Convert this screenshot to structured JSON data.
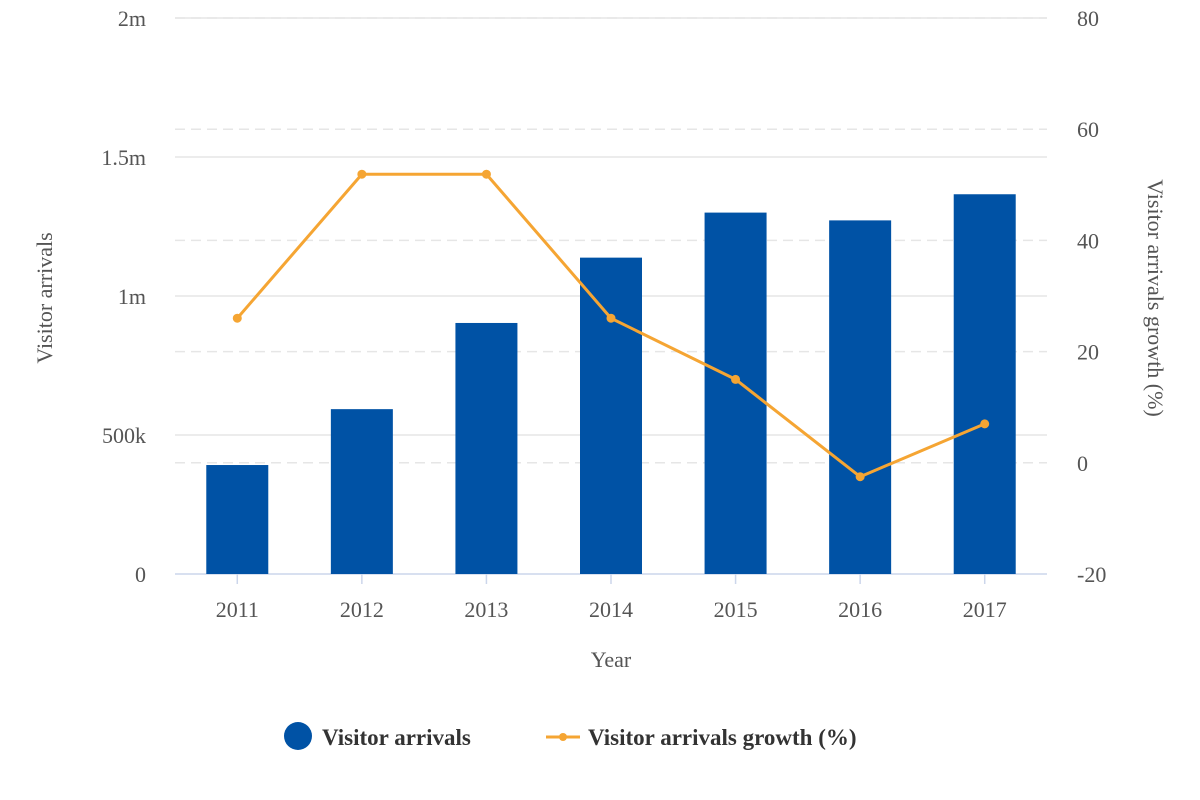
{
  "chart_data": {
    "type": "bar",
    "categories": [
      "2011",
      "2012",
      "2013",
      "2014",
      "2015",
      "2016",
      "2017"
    ],
    "series": [
      {
        "name": "Visitor arrivals",
        "type": "bar",
        "axis": "left",
        "color": "#0052A5",
        "values": [
          392000,
          593000,
          903000,
          1138000,
          1300000,
          1272000,
          1366000
        ]
      },
      {
        "name": "Visitor arrivals growth (%)",
        "type": "line",
        "axis": "right",
        "color": "#F5A533",
        "values": [
          26,
          51.9,
          51.9,
          26,
          15,
          -2.5,
          7
        ]
      }
    ],
    "xlabel": "Year",
    "ylabel": "Visitor arrivals",
    "y2label": "Visitor arrivals growth (%)",
    "ylim": [
      0,
      2000000
    ],
    "y2lim": [
      -20,
      80
    ],
    "yticks": [
      {
        "value": 0,
        "label": "0"
      },
      {
        "value": 500000,
        "label": "500k"
      },
      {
        "value": 1000000,
        "label": "1m"
      },
      {
        "value": 1500000,
        "label": "1.5m"
      },
      {
        "value": 2000000,
        "label": "2m"
      }
    ],
    "y2ticks": [
      {
        "value": -20,
        "label": "-20"
      },
      {
        "value": 0,
        "label": "0"
      },
      {
        "value": 20,
        "label": "20"
      },
      {
        "value": 40,
        "label": "40"
      },
      {
        "value": 60,
        "label": "60"
      },
      {
        "value": 80,
        "label": "80"
      }
    ],
    "grid": true,
    "legend_position": "bottom"
  }
}
